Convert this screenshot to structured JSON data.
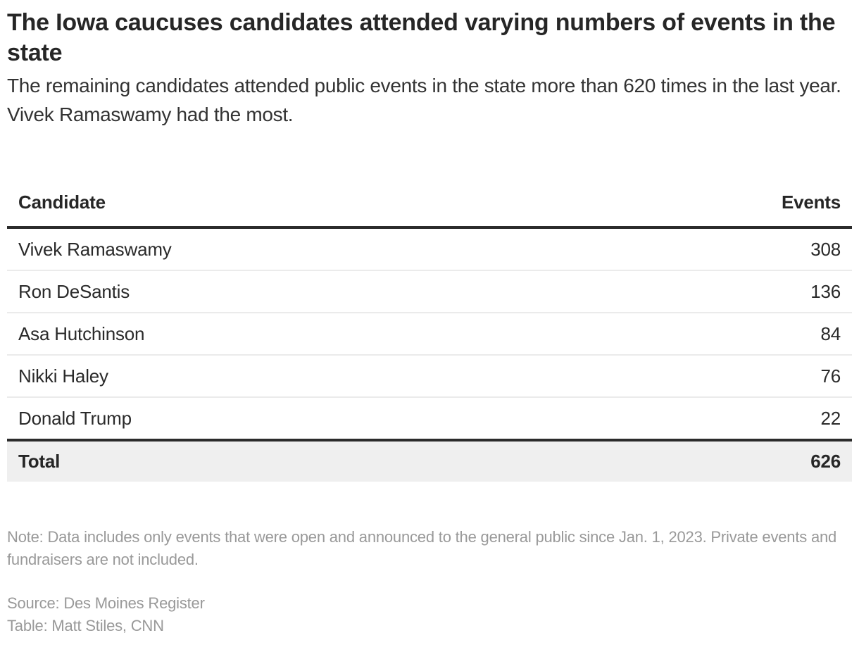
{
  "header": {
    "title": "The Iowa caucuses candidates attended varying numbers of events in the state",
    "subtitle": "The remaining candidates attended public events in the state more than 620 times in the last year. Vivek Ramaswamy had the most."
  },
  "table": {
    "columns": [
      "Candidate",
      "Events"
    ],
    "rows": [
      {
        "candidate": "Vivek Ramaswamy",
        "events": "308"
      },
      {
        "candidate": "Ron DeSantis",
        "events": "136"
      },
      {
        "candidate": "Asa Hutchinson",
        "events": "84"
      },
      {
        "candidate": "Nikki Haley",
        "events": "76"
      },
      {
        "candidate": "Donald Trump",
        "events": "22"
      }
    ],
    "total": {
      "label": "Total",
      "events": "626"
    }
  },
  "footer": {
    "note": "Note: Data includes only events that were open and announced to the general public since Jan. 1, 2023. Private events and fundraisers are not included.",
    "source": "Source: Des Moines Register",
    "credit": "Table: Matt Stiles, CNN"
  },
  "colors": {
    "text": "#262626",
    "rule": "#2b2b2b",
    "row_divider": "#ebebeb",
    "total_bg": "#efefef",
    "muted": "#999999"
  },
  "chart_data": {
    "type": "table",
    "title": "The Iowa caucuses candidates attended varying numbers of events in the state",
    "subtitle": "The remaining candidates attended public events in the state more than 620 times in the last year. Vivek Ramaswamy had the most.",
    "columns": [
      "Candidate",
      "Events"
    ],
    "categories": [
      "Vivek Ramaswamy",
      "Ron DeSantis",
      "Asa Hutchinson",
      "Nikki Haley",
      "Donald Trump"
    ],
    "values": [
      308,
      136,
      84,
      76,
      22
    ],
    "total": 626,
    "note": "Data includes only events that were open and announced to the general public since Jan. 1, 2023. Private events and fundraisers are not included.",
    "source": "Des Moines Register"
  }
}
